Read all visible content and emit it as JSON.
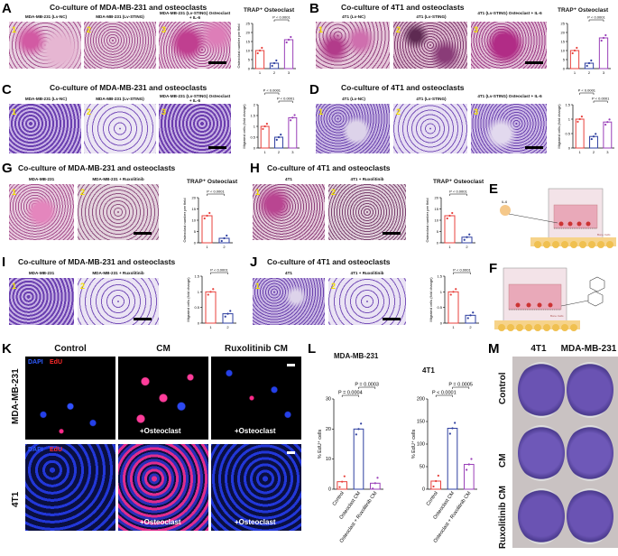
{
  "panels": {
    "A": {
      "letter": "A",
      "title": "Co-culture of MDA-MB-231 and osteoclasts",
      "image_labels": [
        "MDA-MB-231 (Lv-NC)",
        "MDA-MB-231 (Lv-STING)",
        "MDA-MB-231 (Lv-STING) Osteoclast + IL-6"
      ],
      "image_numbers": [
        "1",
        "2",
        "3"
      ],
      "chart_title": "TRAP⁺ Osteoclast",
      "ylabel": "Osteoclast number per field",
      "pvalues": [
        "P < 0.0001",
        "P < 0.0001"
      ]
    },
    "B": {
      "letter": "B",
      "title": "Co-culture of 4T1 and osteoclasts",
      "image_labels": [
        "4T1 (Lv-NC)",
        "4T1 (Lv-STING)",
        "4T1 (Lv-STING) Osteoclast + IL-6"
      ],
      "image_numbers": [
        "1",
        "2",
        "3"
      ],
      "chart_title": "TRAP⁺ Osteoclast",
      "pvalues": [
        "P < 0.0001",
        "P < 0.0001"
      ]
    },
    "C": {
      "letter": "C",
      "title": "Co-culture of MDA-MB-231 and osteoclasts",
      "image_labels": [
        "MDA-MB-231 (Lv-NC)",
        "MDA-MB-231 (Lv-STING)",
        "MDA-MB-231 (Lv-STING) Osteoclast + IL-6"
      ],
      "image_numbers": [
        "1",
        "2",
        "3"
      ],
      "ylabel": "Migrated cells (fold change)",
      "pvalues": [
        "P < 0.0001",
        "P < 0.0001"
      ]
    },
    "D": {
      "letter": "D",
      "title": "Co-culture of 4T1 and osteoclasts",
      "image_labels": [
        "4T1 (Lv-NC)",
        "4T1 (Lv-STING)",
        "4T1 (Lv-STING) Osteoclast + IL-6"
      ],
      "image_numbers": [
        "1",
        "2",
        "3"
      ],
      "ylabel": "Migrated cells (fold change)",
      "pvalues": [
        "P < 0.0001",
        "P < 0.0001"
      ]
    },
    "G": {
      "letter": "G",
      "title": "Co-culture of MDA-MB-231 and osteoclasts",
      "image_labels": [
        "MDA-MB-231",
        "MDA-MB-231 + Ruxolitinib"
      ],
      "image_numbers": [
        "1",
        "2"
      ],
      "chart_title": "TRAP⁺ Osteoclast",
      "ylabel": "Osteoclast number per field",
      "pvalues": [
        "P < 0.0001"
      ]
    },
    "H": {
      "letter": "H",
      "title": "Co-culture of 4T1 and osteoclasts",
      "image_labels": [
        "4T1",
        "4T1 + Ruxolitinib"
      ],
      "image_numbers": [
        "1",
        "2"
      ],
      "chart_title": "TRAP⁺ Osteoclast",
      "ylabel": "Osteoclast number per field",
      "pvalues": [
        "P < 0.0001"
      ]
    },
    "I": {
      "letter": "I",
      "title": "Co-culture of MDA-MB-231 and osteoclasts",
      "image_labels": [
        "MDA-MB-231",
        "MDA-MB-231 + Ruxolitinib"
      ],
      "image_numbers": [
        "1",
        "2"
      ],
      "ylabel": "Migrated cells (fold change)",
      "pvalues": [
        "P < 0.0001"
      ]
    },
    "J": {
      "letter": "J",
      "title": "Co-culture of 4T1 and osteoclasts",
      "image_labels": [
        "4T1",
        "4T1 + Ruxolitinib"
      ],
      "image_numbers": [
        "1",
        "2"
      ],
      "ylabel": "Migrated cells (fold change)",
      "pvalues": [
        "P < 0.0001"
      ]
    },
    "E": {
      "letter": "E",
      "chamber_label": "Bone Cells",
      "il6_label": "IL-6"
    },
    "F": {
      "letter": "F",
      "chamber_label": "Bone Cells"
    },
    "K": {
      "letter": "K",
      "columns": [
        "Control",
        "CM",
        "Ruxolitinib CM"
      ],
      "rows": [
        "MDA-MB-231",
        "4T1"
      ],
      "stain_dapi": "DAPI",
      "stain_edu": "EdU",
      "osteoclast_tag": "+Osteoclast"
    },
    "L": {
      "letter": "L",
      "subtitles": [
        "MDA-MB-231",
        "4T1"
      ],
      "ylabel": "% EdU⁺ cells",
      "pvalues_left": [
        "P = 0.0003",
        "P = 0.0004"
      ],
      "pvalues_right": [
        "P = 0.0005",
        "P < 0.0001"
      ],
      "xlabels": [
        "Control",
        "Osteoclast CM",
        "Osteoclast + Ruxolitinib CM"
      ]
    },
    "M": {
      "letter": "M",
      "columns": [
        "4T1",
        "MDA-MB-231"
      ],
      "rows": [
        "Control",
        "CM",
        "Ruxolitinib CM"
      ]
    }
  },
  "colors": {
    "bar_red": "#e8413c",
    "bar_blue": "#2e3fa0",
    "bar_purple": "#9a3fb8",
    "trap_pink": "#c8559a",
    "crystal_violet": "#6a3fb0",
    "edu_red": "#ff2a6a",
    "dapi_blue": "#1a3cff"
  },
  "chart_data": [
    {
      "type": "bar",
      "panel": "A",
      "title": "TRAP⁺ Osteoclast",
      "ylabel": "Osteoclast number per field",
      "categories": [
        "1",
        "2",
        "3"
      ],
      "values": [
        10,
        3,
        16
      ],
      "ylim": [
        0,
        25
      ],
      "yticks": [
        0,
        5,
        10,
        15,
        20,
        25
      ]
    },
    {
      "type": "bar",
      "panel": "B",
      "title": "TRAP⁺ Osteoclast",
      "categories": [
        "1",
        "2",
        "3"
      ],
      "values": [
        10,
        3,
        17
      ],
      "ylim": [
        0,
        25
      ],
      "yticks": [
        0,
        5,
        10,
        15,
        20,
        25
      ]
    },
    {
      "type": "bar",
      "panel": "C",
      "ylabel": "Migrated cells (fold change)",
      "categories": [
        "1",
        "2",
        "3"
      ],
      "values": [
        1.0,
        0.5,
        1.4
      ],
      "ylim": [
        0,
        2.0
      ],
      "yticks": [
        0,
        0.5,
        1.0,
        1.5,
        2.0
      ]
    },
    {
      "type": "bar",
      "panel": "D",
      "ylabel": "Migrated cells (fold change)",
      "categories": [
        "1",
        "2",
        "3"
      ],
      "values": [
        1.0,
        0.4,
        0.9
      ],
      "ylim": [
        0,
        1.5
      ],
      "yticks": [
        0,
        0.5,
        1.0,
        1.5
      ]
    },
    {
      "type": "bar",
      "panel": "G",
      "title": "TRAP⁺ Osteoclast",
      "ylabel": "Osteoclast number per field",
      "categories": [
        "1",
        "2"
      ],
      "values": [
        12,
        2
      ],
      "ylim": [
        0,
        20
      ],
      "yticks": [
        0,
        5,
        10,
        15,
        20
      ]
    },
    {
      "type": "bar",
      "panel": "H",
      "title": "TRAP⁺ Osteoclast",
      "ylabel": "Osteoclast number per field",
      "categories": [
        "1",
        "2"
      ],
      "values": [
        12,
        2.5
      ],
      "ylim": [
        0,
        20
      ],
      "yticks": [
        0,
        5,
        10,
        15,
        20
      ]
    },
    {
      "type": "bar",
      "panel": "I",
      "ylabel": "Migrated cells (fold change)",
      "categories": [
        "1",
        "2"
      ],
      "values": [
        1.0,
        0.3
      ],
      "ylim": [
        0,
        1.5
      ],
      "yticks": [
        0,
        0.5,
        1.0,
        1.5
      ]
    },
    {
      "type": "bar",
      "panel": "J",
      "ylabel": "Migrated cells (fold change)",
      "categories": [
        "1",
        "2"
      ],
      "values": [
        1.0,
        0.25
      ],
      "ylim": [
        0,
        1.5
      ],
      "yticks": [
        0,
        0.5,
        1.0,
        1.5
      ]
    },
    {
      "type": "bar",
      "panel": "L-left",
      "title": "MDA-MB-231",
      "ylabel": "% EdU⁺ cells",
      "categories": [
        "Control",
        "Osteoclast CM",
        "Osteoclast + Ruxolitinib CM"
      ],
      "values": [
        2.5,
        20,
        2
      ],
      "ylim": [
        0,
        30
      ],
      "yticks": [
        0,
        10,
        20,
        30
      ]
    },
    {
      "type": "bar",
      "panel": "L-right",
      "title": "4T1",
      "ylabel": "% EdU⁺ cells",
      "categories": [
        "Control",
        "Osteoclast CM",
        "Osteoclast + Ruxolitinib CM"
      ],
      "values": [
        18,
        135,
        55
      ],
      "ylim": [
        0,
        200
      ],
      "yticks": [
        0,
        50,
        100,
        150,
        200
      ]
    }
  ]
}
